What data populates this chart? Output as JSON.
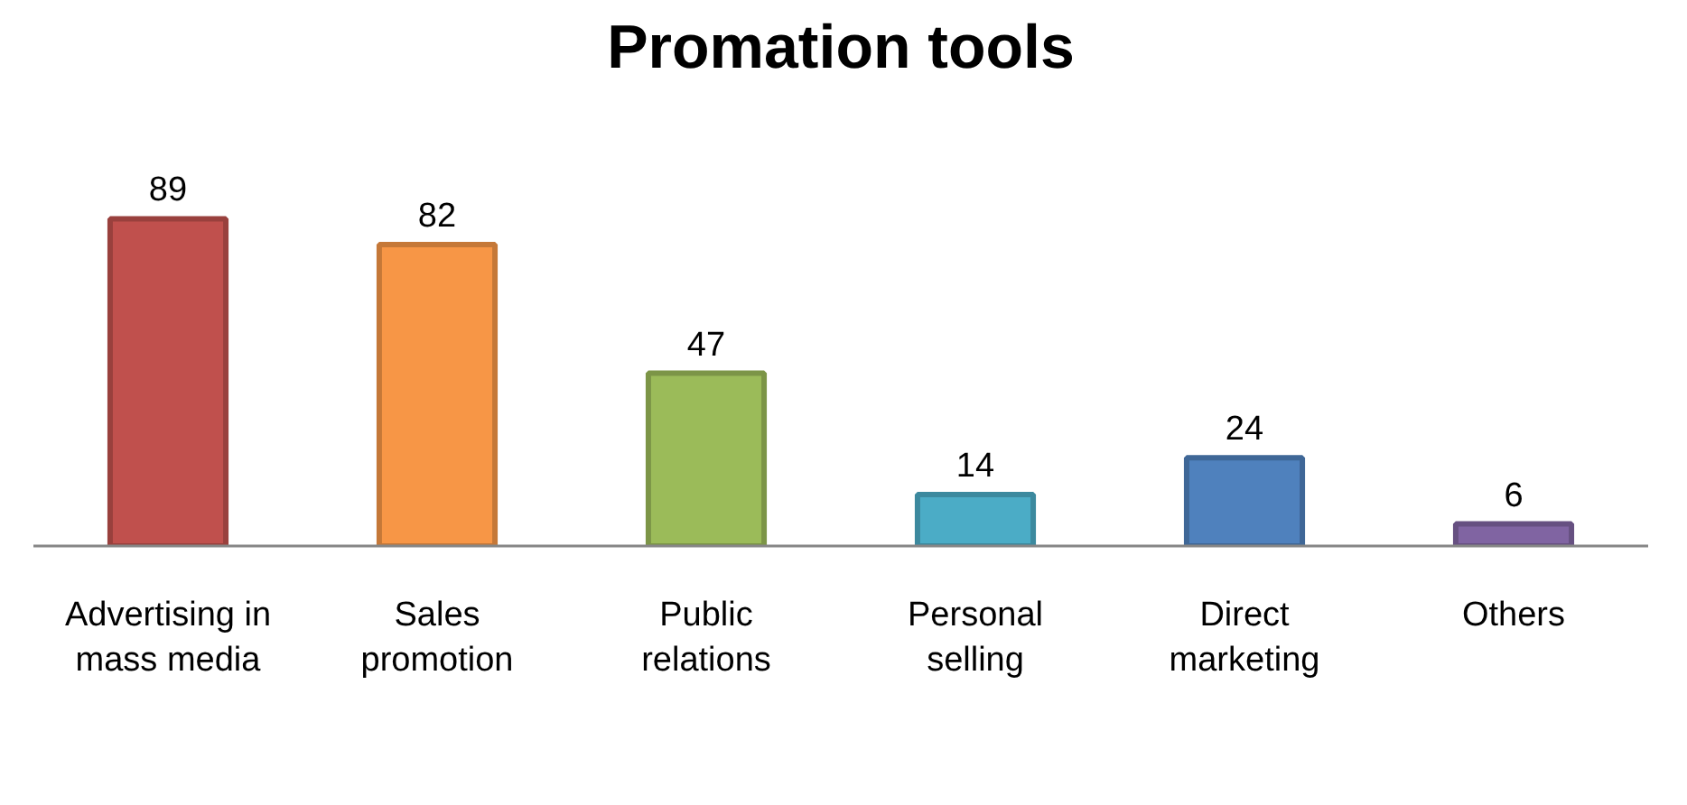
{
  "chart_data": {
    "type": "bar",
    "title": "Promation tools",
    "categories": [
      "Advertising in\nmass media",
      "Sales\npromotion",
      "Public\nrelations",
      "Personal\nselling",
      "Direct\nmarketing",
      "Others"
    ],
    "values": [
      89,
      82,
      47,
      14,
      24,
      6
    ],
    "colors": [
      "#c0504d",
      "#f79646",
      "#9bbb59",
      "#4bacc6",
      "#4f81bd",
      "#8064a2"
    ],
    "data_labels": true,
    "tick_labels": "x",
    "grid": false
  }
}
